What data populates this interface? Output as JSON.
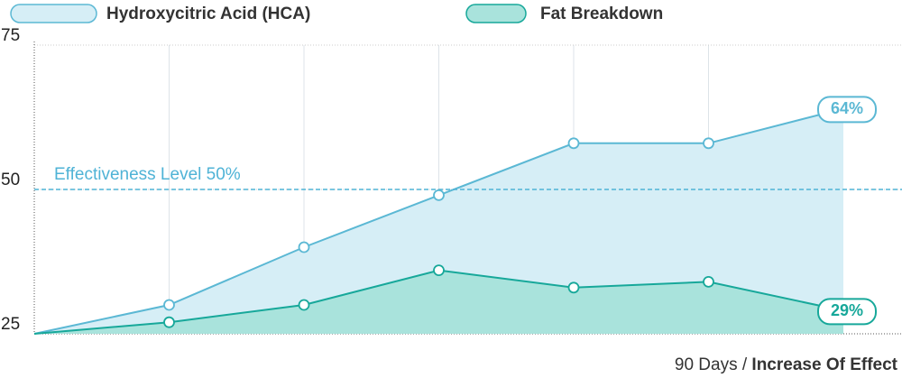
{
  "chart_data": {
    "type": "area",
    "categories": [
      null,
      null,
      null,
      null,
      null,
      null,
      null
    ],
    "series": [
      {
        "name": "Hydroxycitric Acid (HCA)",
        "color": "#5bb8d4",
        "fill": "#d6eef6",
        "values": [
          25,
          30,
          40,
          49,
          58,
          58,
          64
        ],
        "value_labels": [
          null,
          null,
          null,
          null,
          null,
          null,
          "64%"
        ]
      },
      {
        "name": "Fat Breakdown",
        "color": "#17a89a",
        "fill": "#a9e3dc",
        "values": [
          25,
          27,
          30,
          36,
          33,
          34,
          29
        ],
        "value_labels": [
          null,
          null,
          null,
          null,
          null,
          null,
          "29%"
        ]
      }
    ],
    "ylim": [
      25,
      75
    ],
    "yticks": [
      25,
      50,
      75
    ],
    "grid": true,
    "reference_line": {
      "value": 50,
      "label": "Effectiveness Level 50%",
      "color": "#4fb3d6"
    },
    "xlabel_parts": [
      "90 Days / ",
      "Increase Of Effect"
    ]
  }
}
